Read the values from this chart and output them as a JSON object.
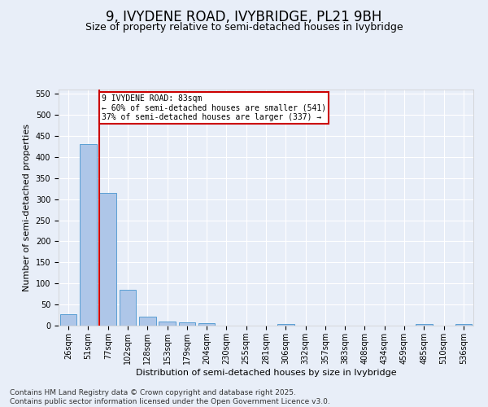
{
  "title": "9, IVYDENE ROAD, IVYBRIDGE, PL21 9BH",
  "subtitle": "Size of property relative to semi-detached houses in Ivybridge",
  "xlabel": "Distribution of semi-detached houses by size in Ivybridge",
  "ylabel": "Number of semi-detached properties",
  "categories": [
    "26sqm",
    "51sqm",
    "77sqm",
    "102sqm",
    "128sqm",
    "153sqm",
    "179sqm",
    "204sqm",
    "230sqm",
    "255sqm",
    "281sqm",
    "306sqm",
    "332sqm",
    "357sqm",
    "383sqm",
    "408sqm",
    "434sqm",
    "459sqm",
    "485sqm",
    "510sqm",
    "536sqm"
  ],
  "values": [
    27,
    430,
    315,
    85,
    22,
    10,
    7,
    5,
    0,
    0,
    0,
    4,
    0,
    0,
    0,
    0,
    0,
    0,
    4,
    0,
    4
  ],
  "bar_color": "#aec6e8",
  "bar_edge_color": "#5a9fd4",
  "vline_x_index": 2,
  "vline_color": "#cc0000",
  "annotation_line1": "9 IVYDENE ROAD: 83sqm",
  "annotation_line2": "← 60% of semi-detached houses are smaller (541)",
  "annotation_line3": "37% of semi-detached houses are larger (337) →",
  "annotation_box_color": "#ffffff",
  "annotation_box_edge": "#cc0000",
  "ylim": [
    0,
    560
  ],
  "yticks": [
    0,
    50,
    100,
    150,
    200,
    250,
    300,
    350,
    400,
    450,
    500,
    550
  ],
  "bg_color": "#e8eef8",
  "plot_bg_color": "#e8eef8",
  "footer": "Contains HM Land Registry data © Crown copyright and database right 2025.\nContains public sector information licensed under the Open Government Licence v3.0.",
  "title_fontsize": 12,
  "subtitle_fontsize": 9,
  "xlabel_fontsize": 8,
  "ylabel_fontsize": 8,
  "tick_fontsize": 7,
  "footer_fontsize": 6.5,
  "annotation_fontsize": 7
}
